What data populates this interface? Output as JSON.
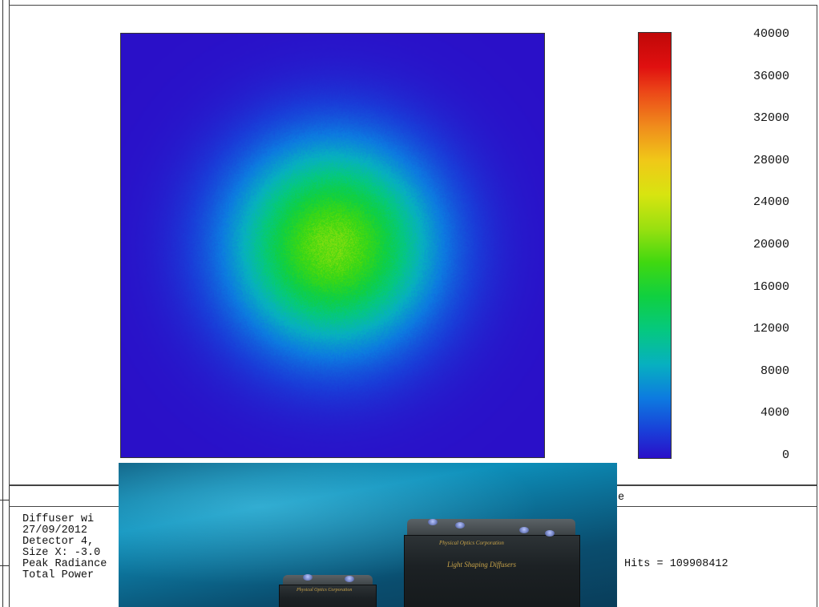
{
  "chart_data": {
    "type": "heatmap",
    "colorbar_ticks": [
      40000,
      36000,
      32000,
      28000,
      24000,
      20000,
      16000,
      12000,
      8000,
      4000,
      0
    ],
    "colorbar_range": [
      0,
      40000
    ],
    "distribution": {
      "shape": "radial gaussian spot",
      "center": [
        0.5,
        0.5
      ],
      "peak_value": 20000,
      "background_value": 0
    }
  },
  "caption": {
    "lines": [
      "Diffuser wi",
      "27/09/2012",
      "Detector 4, ",
      "Size X: -3.0",
      "Peak Radiance",
      "Total Power"
    ],
    "right_header": "e",
    "hits": "Hits = 109908412"
  },
  "photo": {
    "label_large": "Light Shaping Diffusers",
    "label_large_brand": "Physical Optics Corporation",
    "label_small_brand": "Physical Optics Corporation"
  }
}
